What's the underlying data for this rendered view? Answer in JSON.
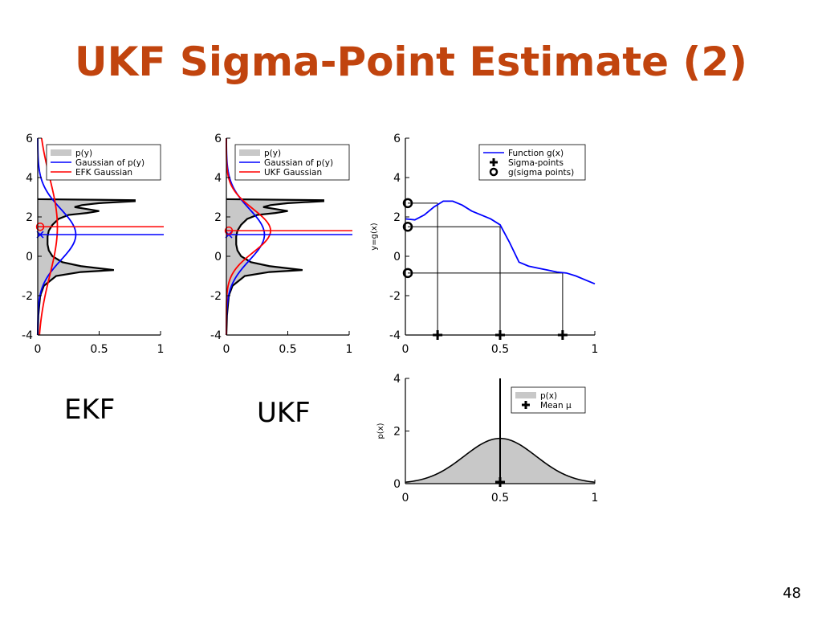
{
  "slide": {
    "title": "UKF Sigma-Point Estimate (2)",
    "page_number": "48",
    "title_color": "#c1440e",
    "label_ekf": "EKF",
    "label_ukf": "UKF"
  },
  "chart_data": [
    {
      "id": "ekf",
      "type": "line",
      "orientation": "horizontal-density",
      "xlim": [
        0,
        1
      ],
      "ylim": [
        -4,
        6
      ],
      "xticks": [
        "0",
        "0.5",
        "1"
      ],
      "yticks": [
        "-4",
        "-2",
        "0",
        "2",
        "4",
        "6"
      ],
      "legend": [
        "p(y)",
        "Gaussian of p(y)",
        "EFK Gaussian"
      ],
      "legend_placement": "top-right",
      "colors": {
        "density": "#000000",
        "fill": "#c8c8c8",
        "gaussian": "#0000ff",
        "approx": "#ff0000"
      },
      "density": {
        "y": [
          -4,
          -3,
          -2,
          -1.5,
          -1,
          -0.8,
          -0.7,
          -0.5,
          -0.3,
          0,
          0.3,
          0.6,
          1,
          1.3,
          1.6,
          1.9,
          2.1,
          2.2,
          2.3,
          2.4,
          2.5,
          2.6,
          2.7,
          2.8,
          2.85,
          2.9
        ],
        "x": [
          0,
          0.005,
          0.02,
          0.05,
          0.15,
          0.35,
          0.62,
          0.35,
          0.2,
          0.12,
          0.09,
          0.08,
          0.08,
          0.09,
          0.12,
          0.17,
          0.25,
          0.4,
          0.5,
          0.4,
          0.3,
          0.36,
          0.5,
          0.79,
          0.79,
          0
        ]
      },
      "gaussian": {
        "mean": 1.1,
        "peak": 0.31,
        "sigma": 1.3
      },
      "approx": {
        "mean": 1.5,
        "peak": 0.16,
        "sigma": 2.5
      },
      "mean_markers": [
        {
          "y": 1.1,
          "color": "#0000ff",
          "marker": "x"
        },
        {
          "y": 1.5,
          "color": "#ff0000",
          "marker": "o"
        }
      ]
    },
    {
      "id": "ukf",
      "type": "line",
      "orientation": "horizontal-density",
      "xlim": [
        0,
        1
      ],
      "ylim": [
        -4,
        6
      ],
      "xticks": [
        "0",
        "0.5",
        "1"
      ],
      "yticks": [
        "-4",
        "-2",
        "0",
        "2",
        "4",
        "6"
      ],
      "legend": [
        "p(y)",
        "Gaussian of p(y)",
        "UKF Gaussian"
      ],
      "legend_placement": "top-right",
      "colors": {
        "density": "#000000",
        "fill": "#c8c8c8",
        "gaussian": "#0000ff",
        "approx": "#ff0000"
      },
      "density": {
        "y": [
          -4,
          -3,
          -2,
          -1.5,
          -1,
          -0.8,
          -0.7,
          -0.5,
          -0.3,
          0,
          0.3,
          0.6,
          1,
          1.3,
          1.6,
          1.9,
          2.1,
          2.2,
          2.3,
          2.4,
          2.5,
          2.6,
          2.7,
          2.8,
          2.85,
          2.9
        ],
        "x": [
          0,
          0.005,
          0.02,
          0.05,
          0.15,
          0.35,
          0.62,
          0.35,
          0.2,
          0.12,
          0.09,
          0.08,
          0.08,
          0.09,
          0.12,
          0.17,
          0.25,
          0.4,
          0.5,
          0.4,
          0.3,
          0.36,
          0.5,
          0.79,
          0.79,
          0
        ]
      },
      "gaussian": {
        "mean": 1.1,
        "peak": 0.31,
        "sigma": 1.3
      },
      "approx": {
        "mean": 1.3,
        "peak": 0.36,
        "sigma": 1.1
      },
      "mean_markers": [
        {
          "y": 1.1,
          "color": "#0000ff",
          "marker": "x"
        },
        {
          "y": 1.3,
          "color": "#ff0000",
          "marker": "o"
        }
      ]
    },
    {
      "id": "function",
      "type": "line",
      "xlim": [
        0,
        1
      ],
      "ylim": [
        -4,
        6
      ],
      "xticks": [
        "0",
        "0.5",
        "1"
      ],
      "yticks": [
        "-4",
        "-2",
        "0",
        "2",
        "4",
        "6"
      ],
      "ylabel": "y=g(x)",
      "legend": [
        "Function g(x)",
        "Sigma-points",
        "g(sigma points)"
      ],
      "legend_placement": "top-right",
      "function": {
        "x": [
          0,
          0.05,
          0.1,
          0.15,
          0.2,
          0.25,
          0.3,
          0.35,
          0.4,
          0.45,
          0.5,
          0.55,
          0.6,
          0.65,
          0.7,
          0.75,
          0.8,
          0.85,
          0.9,
          0.95,
          1.0
        ],
        "y": [
          1.9,
          1.85,
          2.1,
          2.5,
          2.8,
          2.8,
          2.6,
          2.3,
          2.1,
          1.9,
          1.6,
          0.7,
          -0.3,
          -0.5,
          -0.6,
          -0.7,
          -0.8,
          -0.85,
          -1.0,
          -1.2,
          -1.4
        ]
      },
      "sigma_points": [
        0.17,
        0.5,
        0.83
      ],
      "g_sigma_points": [
        2.7,
        1.5,
        -0.85
      ]
    },
    {
      "id": "prior",
      "type": "area",
      "xlim": [
        0,
        1
      ],
      "ylim": [
        0,
        5
      ],
      "xticks": [
        "0",
        "0.5",
        "1"
      ],
      "yticks": [
        "0",
        "2",
        "4"
      ],
      "ylabel": "p(x)",
      "legend": [
        "p(x)",
        "Mean μ"
      ],
      "legend_placement": "top-right",
      "density": {
        "mean": 0.5,
        "peak": 2.15,
        "sigma": 0.19
      },
      "mean": 0.5
    }
  ]
}
